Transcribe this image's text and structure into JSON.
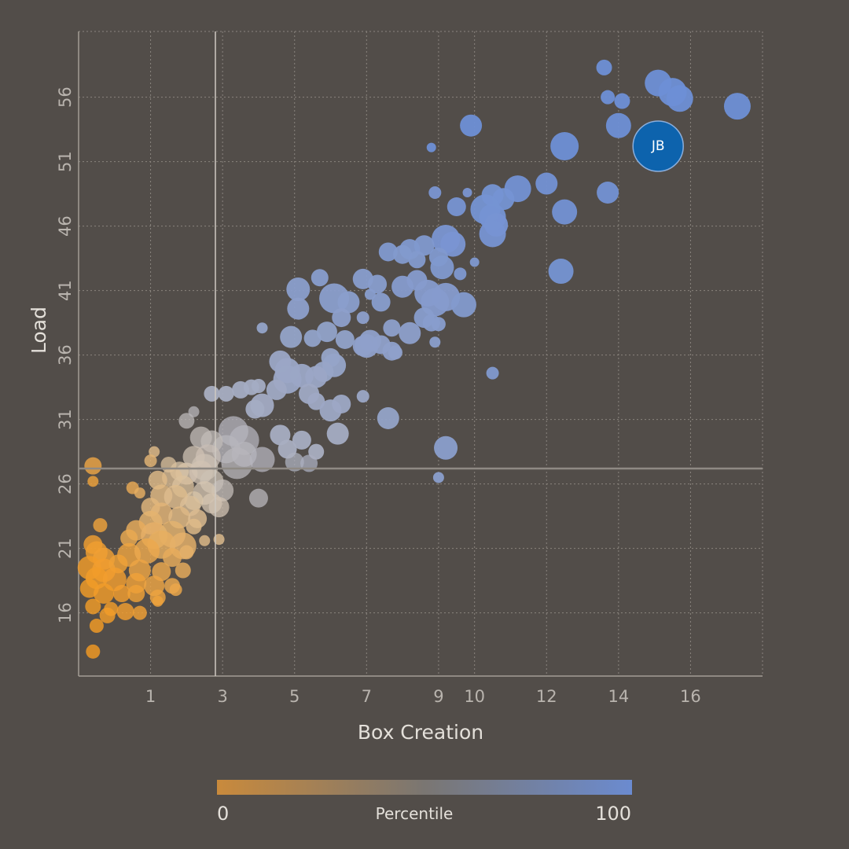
{
  "chart_data": {
    "type": "scatter",
    "xlabel": "Box Creation",
    "ylabel": "Load",
    "xlim": [
      -1.0,
      18.0
    ],
    "ylim": [
      11.1,
      61.1
    ],
    "x_ticks": [
      1,
      3,
      5,
      7,
      9,
      10,
      12,
      14,
      16
    ],
    "y_ticks": [
      16,
      21,
      26,
      31,
      36,
      41,
      46,
      51,
      56
    ],
    "grid": true,
    "reference_lines": {
      "x": 2.8,
      "y": 27.2
    },
    "colorbar": {
      "label": "Percentile",
      "min_label": "0",
      "max_label": "100",
      "low_color": "#c98a3c",
      "mid_color": "#7a7672",
      "high_color": "#6b8bd0"
    },
    "highlight": {
      "label": "JB",
      "x": 15.1,
      "y": 52.2,
      "color": "#0d63ad"
    },
    "points": [
      [
        13.6,
        58.3,
        10,
        100
      ],
      [
        15.1,
        57.1,
        17,
        100
      ],
      [
        15.5,
        56.4,
        18,
        100
      ],
      [
        15.7,
        55.9,
        17,
        100
      ],
      [
        13.7,
        56.0,
        9,
        100
      ],
      [
        14.1,
        55.7,
        10,
        100
      ],
      [
        17.3,
        55.3,
        17,
        100
      ],
      [
        14.0,
        53.8,
        16,
        100
      ],
      [
        9.9,
        53.8,
        14,
        100
      ],
      [
        12.5,
        52.2,
        18,
        100
      ],
      [
        8.8,
        52.1,
        6,
        100
      ],
      [
        12.0,
        49.3,
        14,
        98
      ],
      [
        11.2,
        48.9,
        17,
        98
      ],
      [
        10.5,
        48.4,
        14,
        97
      ],
      [
        10.8,
        48.1,
        14,
        97
      ],
      [
        13.7,
        48.6,
        14,
        98
      ],
      [
        8.9,
        48.6,
        8,
        95
      ],
      [
        9.8,
        48.6,
        6,
        95
      ],
      [
        9.5,
        47.5,
        12,
        96
      ],
      [
        10.3,
        47.3,
        19,
        97
      ],
      [
        12.5,
        47.1,
        16,
        98
      ],
      [
        10.5,
        46.7,
        17,
        97
      ],
      [
        10.6,
        46.1,
        15,
        96
      ],
      [
        10.5,
        45.4,
        17,
        96
      ],
      [
        9.2,
        45.0,
        18,
        95
      ],
      [
        9.4,
        44.6,
        16,
        95
      ],
      [
        7.6,
        44.0,
        12,
        92
      ],
      [
        8.2,
        44.2,
        13,
        92
      ],
      [
        8.6,
        44.5,
        13,
        92
      ],
      [
        8.0,
        43.8,
        12,
        91
      ],
      [
        8.4,
        43.4,
        11,
        91
      ],
      [
        9.0,
        43.6,
        12,
        92
      ],
      [
        10.0,
        43.2,
        6,
        93
      ],
      [
        9.6,
        42.3,
        8,
        93
      ],
      [
        12.4,
        42.5,
        16,
        97
      ],
      [
        9.1,
        42.8,
        15,
        92
      ],
      [
        5.1,
        41.1,
        15,
        88
      ],
      [
        5.7,
        42.0,
        11,
        89
      ],
      [
        6.9,
        41.9,
        13,
        89
      ],
      [
        7.3,
        41.5,
        12,
        89
      ],
      [
        8.4,
        41.8,
        13,
        90
      ],
      [
        8.0,
        41.3,
        14,
        90
      ],
      [
        6.1,
        40.4,
        19,
        88
      ],
      [
        6.5,
        40.1,
        14,
        88
      ],
      [
        7.1,
        40.7,
        7,
        89
      ],
      [
        7.4,
        40.1,
        12,
        89
      ],
      [
        8.7,
        40.8,
        17,
        90
      ],
      [
        8.9,
        40.1,
        18,
        90
      ],
      [
        9.2,
        40.5,
        18,
        90
      ],
      [
        9.7,
        39.9,
        16,
        91
      ],
      [
        5.1,
        39.6,
        14,
        87
      ],
      [
        6.3,
        38.9,
        12,
        87
      ],
      [
        6.9,
        38.9,
        8,
        87
      ],
      [
        8.6,
        38.9,
        13,
        89
      ],
      [
        8.8,
        38.5,
        11,
        89
      ],
      [
        9.0,
        38.4,
        9,
        89
      ],
      [
        4.1,
        38.1,
        7,
        84
      ],
      [
        7.7,
        38.1,
        11,
        87
      ],
      [
        8.2,
        37.7,
        14,
        87
      ],
      [
        5.9,
        37.8,
        13,
        85
      ],
      [
        5.5,
        37.3,
        11,
        85
      ],
      [
        6.4,
        37.2,
        12,
        85
      ],
      [
        4.9,
        37.4,
        14,
        84
      ],
      [
        7.1,
        37.1,
        14,
        86
      ],
      [
        7.4,
        36.8,
        12,
        86
      ],
      [
        7.0,
        36.7,
        15,
        86
      ],
      [
        7.7,
        36.3,
        12,
        86
      ],
      [
        6.9,
        36.7,
        13,
        86
      ],
      [
        8.9,
        37.0,
        7,
        88
      ],
      [
        7.8,
        36.2,
        9,
        86
      ],
      [
        6.0,
        35.8,
        12,
        83
      ],
      [
        4.6,
        35.5,
        14,
        81
      ],
      [
        6.1,
        35.2,
        15,
        83
      ],
      [
        5.8,
        34.7,
        13,
        82
      ],
      [
        4.8,
        34.8,
        16,
        81
      ],
      [
        5.2,
        34.4,
        15,
        81
      ],
      [
        5.6,
        34.3,
        14,
        81
      ],
      [
        4.8,
        34.1,
        18,
        81
      ],
      [
        10.5,
        34.6,
        8,
        92
      ],
      [
        4.5,
        33.3,
        13,
        79
      ],
      [
        5.4,
        33.0,
        13,
        79
      ],
      [
        5.6,
        32.4,
        11,
        79
      ],
      [
        6.0,
        31.7,
        14,
        80
      ],
      [
        6.3,
        32.2,
        12,
        80
      ],
      [
        4.1,
        32.1,
        15,
        78
      ],
      [
        3.9,
        31.8,
        12,
        77
      ],
      [
        7.6,
        31.1,
        14,
        84
      ],
      [
        6.9,
        32.8,
        8,
        81
      ],
      [
        3.5,
        33.3,
        11,
        77
      ],
      [
        3.8,
        33.5,
        10,
        77
      ],
      [
        4.0,
        33.6,
        9,
        77
      ],
      [
        3.1,
        33.0,
        10,
        76
      ],
      [
        2.7,
        33.0,
        10,
        75
      ],
      [
        4.6,
        29.8,
        13,
        76
      ],
      [
        5.2,
        29.4,
        12,
        76
      ],
      [
        4.8,
        28.7,
        12,
        75
      ],
      [
        5.6,
        28.5,
        10,
        75
      ],
      [
        6.2,
        29.9,
        14,
        77
      ],
      [
        9.2,
        28.8,
        15,
        88
      ],
      [
        3.3,
        30.1,
        19,
        70
      ],
      [
        3.6,
        29.4,
        19,
        70
      ],
      [
        3.1,
        28.7,
        18,
        69
      ],
      [
        3.4,
        27.6,
        20,
        68
      ],
      [
        3.6,
        28.3,
        16,
        69
      ],
      [
        4.1,
        27.9,
        16,
        70
      ],
      [
        2.7,
        29.3,
        14,
        65
      ],
      [
        2.4,
        29.6,
        14,
        64
      ],
      [
        2.6,
        28.1,
        16,
        62
      ],
      [
        2.5,
        27.3,
        17,
        60
      ],
      [
        2.2,
        28.1,
        14,
        59
      ],
      [
        2.0,
        26.8,
        14,
        55
      ],
      [
        2.4,
        26.9,
        15,
        58
      ],
      [
        2.7,
        26.2,
        15,
        60
      ],
      [
        1.8,
        27.0,
        12,
        52
      ],
      [
        1.5,
        27.5,
        10,
        48
      ],
      [
        2.0,
        30.9,
        10,
        66
      ],
      [
        2.2,
        31.6,
        7,
        68
      ],
      [
        5.0,
        27.7,
        12,
        73
      ],
      [
        5.4,
        27.6,
        11,
        74
      ],
      [
        9.0,
        26.5,
        7,
        88
      ],
      [
        1.1,
        28.5,
        7,
        40
      ],
      [
        3.0,
        25.5,
        14,
        64
      ],
      [
        2.5,
        25.3,
        15,
        56
      ],
      [
        2.7,
        24.5,
        13,
        56
      ],
      [
        2.2,
        24.7,
        12,
        52
      ],
      [
        4.0,
        24.9,
        12,
        68
      ],
      [
        1.6,
        26.5,
        13,
        45
      ],
      [
        1.9,
        25.8,
        14,
        48
      ],
      [
        1.2,
        26.3,
        12,
        40
      ],
      [
        1.3,
        25.1,
        14,
        38
      ],
      [
        1.7,
        25.0,
        15,
        42
      ],
      [
        2.1,
        24.3,
        13,
        46
      ],
      [
        2.9,
        24.2,
        13,
        58
      ],
      [
        1.0,
        24.2,
        12,
        35
      ],
      [
        1.3,
        23.7,
        14,
        33
      ],
      [
        1.8,
        23.4,
        14,
        38
      ],
      [
        1.0,
        23.0,
        15,
        30
      ],
      [
        2.3,
        23.3,
        12,
        43
      ],
      [
        0.5,
        25.7,
        8,
        20
      ],
      [
        0.7,
        25.3,
        7,
        25
      ],
      [
        -0.6,
        27.4,
        11,
        14
      ],
      [
        -0.6,
        26.2,
        7,
        10
      ],
      [
        1.0,
        27.8,
        8,
        32
      ],
      [
        0.6,
        22.4,
        13,
        22
      ],
      [
        1.1,
        22.0,
        17,
        27
      ],
      [
        1.6,
        22.1,
        17,
        30
      ],
      [
        2.2,
        22.7,
        10,
        40
      ],
      [
        0.4,
        21.8,
        11,
        18
      ],
      [
        1.3,
        21.3,
        18,
        24
      ],
      [
        1.9,
        21.2,
        17,
        28
      ],
      [
        2.5,
        21.6,
        7,
        40
      ],
      [
        -0.4,
        22.8,
        9,
        10
      ],
      [
        -0.6,
        21.3,
        12,
        6
      ],
      [
        -0.5,
        20.7,
        14,
        6
      ],
      [
        -0.3,
        20.2,
        14,
        7
      ],
      [
        0.4,
        20.5,
        15,
        12
      ],
      [
        0.9,
        20.8,
        16,
        17
      ],
      [
        1.6,
        20.3,
        12,
        22
      ],
      [
        2.0,
        20.7,
        9,
        28
      ],
      [
        -0.7,
        19.5,
        15,
        3
      ],
      [
        -0.3,
        19.3,
        15,
        5
      ],
      [
        0.1,
        19.8,
        12,
        8
      ],
      [
        0.7,
        19.3,
        14,
        13
      ],
      [
        1.3,
        19.2,
        12,
        17
      ],
      [
        1.9,
        19.3,
        10,
        22
      ],
      [
        -0.5,
        18.7,
        14,
        3
      ],
      [
        0.0,
        18.6,
        15,
        5
      ],
      [
        0.6,
        18.3,
        13,
        9
      ],
      [
        1.1,
        18.1,
        13,
        13
      ],
      [
        1.6,
        18.1,
        10,
        17
      ],
      [
        -0.7,
        17.9,
        12,
        2
      ],
      [
        -0.3,
        17.5,
        13,
        3
      ],
      [
        0.2,
        17.5,
        11,
        5
      ],
      [
        0.6,
        17.5,
        11,
        8
      ],
      [
        1.2,
        17.2,
        10,
        12
      ],
      [
        1.7,
        17.8,
        8,
        16
      ],
      [
        -0.6,
        16.5,
        10,
        2
      ],
      [
        -0.1,
        16.3,
        9,
        3
      ],
      [
        0.3,
        16.1,
        11,
        5
      ],
      [
        0.7,
        16.0,
        9,
        7
      ],
      [
        -0.2,
        15.8,
        10,
        3
      ],
      [
        -0.5,
        15.0,
        9,
        1
      ],
      [
        -0.6,
        13.0,
        9,
        0
      ],
      [
        1.2,
        16.9,
        7,
        10
      ],
      [
        2.9,
        21.7,
        7,
        42
      ]
    ]
  }
}
